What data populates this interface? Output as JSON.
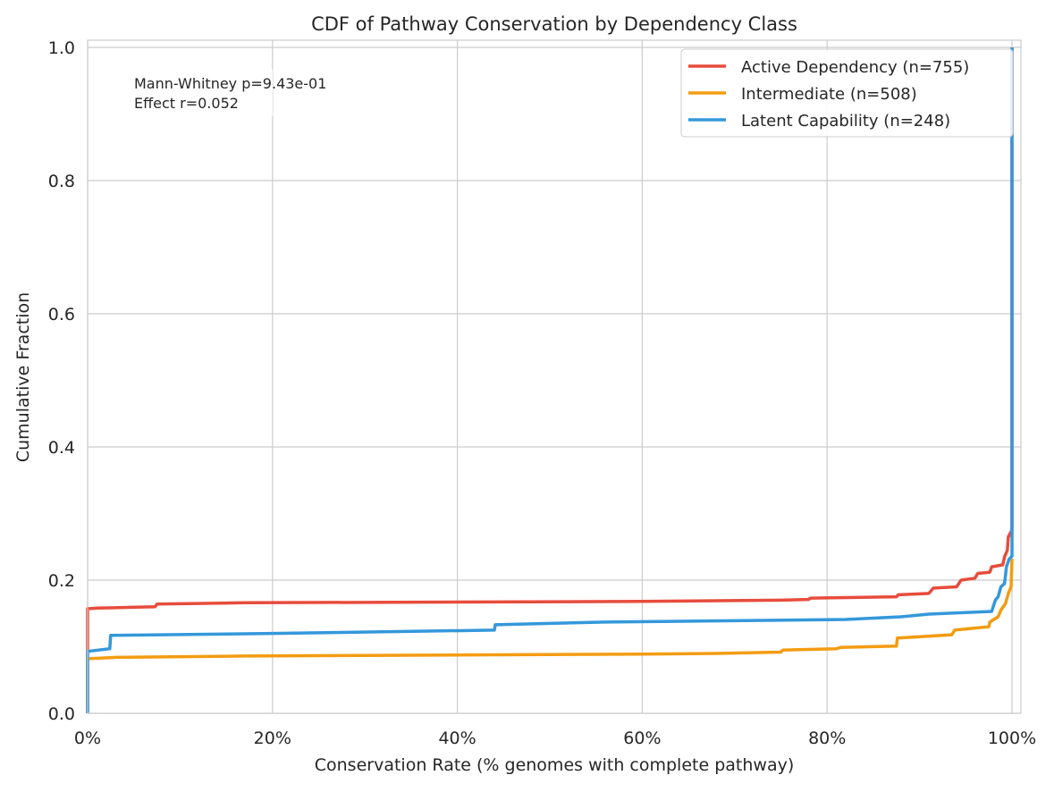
{
  "chart_data": {
    "type": "line",
    "step": true,
    "title": "CDF of Pathway Conservation by Dependency Class",
    "xlabel": "Conservation Rate (% genomes with complete pathway)",
    "ylabel": "Cumulative Fraction",
    "xlim": [
      0,
      100
    ],
    "ylim": [
      0,
      1.0
    ],
    "grid": true,
    "legend_position": "top-right",
    "xticks": [
      0,
      20,
      40,
      60,
      80,
      100
    ],
    "xtick_labels": [
      "0%",
      "20%",
      "40%",
      "60%",
      "80%",
      "100%"
    ],
    "yticks": [
      0,
      0.2,
      0.4,
      0.6,
      0.8,
      1.0
    ],
    "ytick_labels": [
      "0.0",
      "0.2",
      "0.4",
      "0.6",
      "0.8",
      "1.0"
    ],
    "annotation": [
      "Mann-Whitney p=9.43e-01",
      "Effect r=0.052"
    ],
    "series": [
      {
        "name": "Active Dependency (n=755)",
        "color": "#e74c3c",
        "x": [
          0,
          0,
          1,
          7.3,
          7.5,
          17,
          60,
          75,
          78,
          78.2,
          87.5,
          87.7,
          91,
          91.5,
          94,
          94.5,
          96,
          96.3,
          97.6,
          97.8,
          99,
          99.2,
          99.5,
          99.6,
          100,
          100
        ],
        "y": [
          0,
          0.157,
          0.158,
          0.16,
          0.164,
          0.166,
          0.168,
          0.17,
          0.171,
          0.173,
          0.175,
          0.178,
          0.18,
          0.188,
          0.19,
          0.2,
          0.203,
          0.21,
          0.212,
          0.22,
          0.223,
          0.235,
          0.245,
          0.265,
          0.275,
          1.0
        ]
      },
      {
        "name": "Intermediate (n=508)",
        "color": "#f39c12",
        "x": [
          0,
          0,
          3,
          17,
          60,
          68,
          75,
          75.2,
          81,
          81.5,
          87.5,
          87.6,
          93.5,
          93.8,
          97.5,
          97.6,
          98.5,
          98.8,
          99.3,
          99.6,
          99.9,
          100
        ],
        "y": [
          0,
          0.082,
          0.084,
          0.086,
          0.089,
          0.09,
          0.092,
          0.095,
          0.097,
          0.099,
          0.101,
          0.113,
          0.118,
          0.125,
          0.13,
          0.137,
          0.145,
          0.155,
          0.165,
          0.18,
          0.19,
          0.232
        ]
      },
      {
        "name": "Latent Capability (n=248)",
        "color": "#3498db",
        "x": [
          0,
          0,
          2.4,
          2.5,
          20,
          44,
          44.1,
          56,
          82,
          88,
          91,
          97.8,
          98.2,
          98.5,
          98.8,
          99.2,
          99.4,
          99.7,
          100,
          100
        ],
        "y": [
          0,
          0.093,
          0.097,
          0.117,
          0.12,
          0.125,
          0.133,
          0.137,
          0.141,
          0.145,
          0.149,
          0.153,
          0.17,
          0.175,
          0.19,
          0.195,
          0.22,
          0.232,
          0.236,
          1.0
        ]
      }
    ]
  }
}
